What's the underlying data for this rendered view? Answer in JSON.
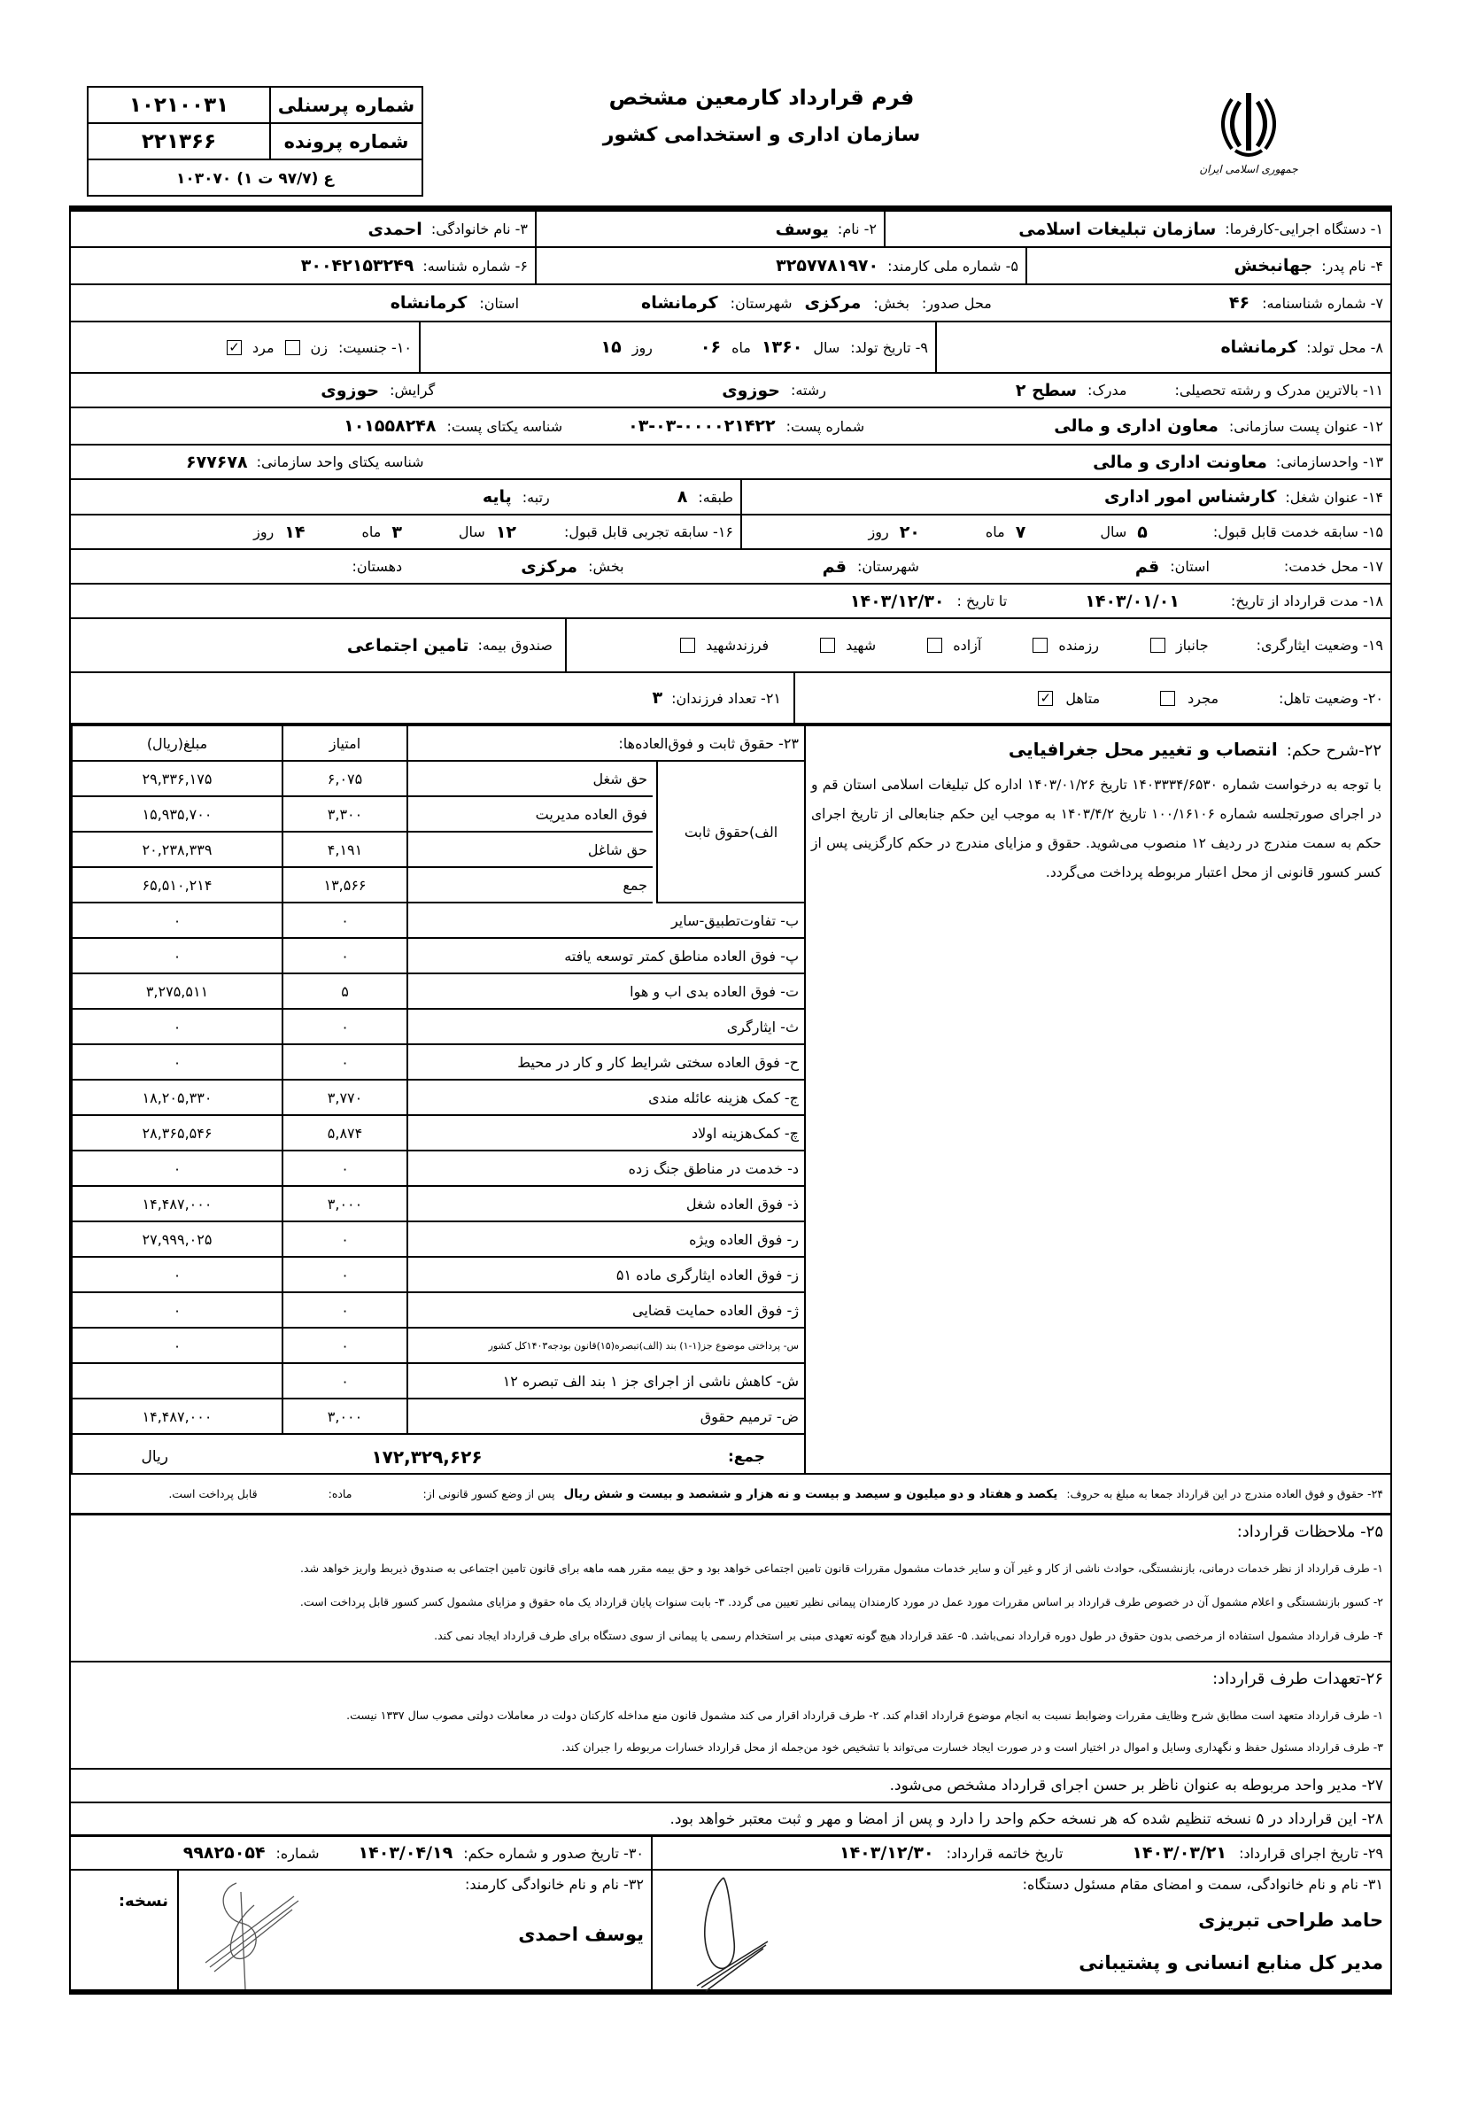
{
  "header": {
    "personnel_no_label": "شماره پرسنلی",
    "personnel_no": "۱۰۲۱۰۰۳۱",
    "file_no_label": "شماره پرونده",
    "file_no": "۲۲۱۳۶۶",
    "form_code": "ع (۹۷/۷ ت ۱) ۱۰۳۰۷۰",
    "title": "فرم قرارداد کارمعین  مشخص",
    "subtitle": "سازمان اداری و استخدامی کشور",
    "logo_text": "جمهوری اسلامی ایران"
  },
  "fields": {
    "employer_label": "۱- دستگاه اجرایی-کارفرما:",
    "employer": "سازمان تبلیغات اسلامی",
    "name_label": "۲- نام:",
    "name": "یوسف",
    "family_label": "۳- نام خانوادگی:",
    "family": "احمدی",
    "father_label": "۴- نام پدر:",
    "father": "جهانبخش",
    "national_id_label": "۵- شماره ملی کارمند:",
    "national_id": "۳۲۵۷۷۸۱۹۷۰",
    "identifier_label": "۶- شماره شناسه:",
    "identifier": "۳۰۰۴۲۱۵۳۲۴۹",
    "birth_cert_label": "۷- شماره شناسنامه:",
    "birth_cert": "۴۶",
    "issue_place_label": "محل صدور:",
    "issue_district_label": "بخش:",
    "issue_district": "مرکزی",
    "issue_city_label": "شهرستان:",
    "issue_city": "کرمانشاه",
    "issue_province_label": "استان:",
    "issue_province": "کرمانشاه",
    "birth_place_label": "۸- محل تولد:",
    "birth_place": "کرمانشاه",
    "birth_date_label": "۹- تاریخ تولد:",
    "year_label": "سال",
    "birth_year": "۱۳۶۰",
    "month_label": "ماه",
    "birth_month": "۰۶",
    "day_label": "روز",
    "birth_day": "۱۵",
    "gender_label": "۱۰- جنسیت:",
    "female_label": "زن",
    "male_label": "مرد",
    "female_checked": false,
    "male_checked": true,
    "education_label": "۱۱- بالاترین مدرک و رشته تحصیلی:",
    "degree_label": "مدرک:",
    "degree": "سطح ۲",
    "major_label": "رشته:",
    "major": "حوزوی",
    "orientation_label": "گرایش:",
    "orientation": "حوزوی",
    "post_title_label": "۱۲- عنوان پست سازمانی:",
    "post_title": "معاون اداری و مالی",
    "post_no_label": "شماره پست:",
    "post_no": "۰۳-۰۳-۰۰۰۰۲۱۴۲۲",
    "post_uid_label": "شناسه یکتای پست:",
    "post_uid": "۱۰۱۵۵۸۲۴۸",
    "unit_label": "۱۳- واحدسازمانی:",
    "unit": "معاونت اداری و مالی",
    "unit_uid_label": "شناسه یکتای واحد سازمانی:",
    "unit_uid": "۶۷۷۶۷۸",
    "job_title_label": "۱۴- عنوان شغل:",
    "job_title": "کارشناس امور اداری",
    "class_label": "طبقه:",
    "class": "۸",
    "rank_label": "رتبه:",
    "rank": "پایه",
    "service_label": "۱۵- سابقه خدمت قابل قبول:",
    "service_years": "۵",
    "service_months": "۷",
    "service_days": "۲۰",
    "experience_label": "۱۶- سابقه تجربی قابل قبول:",
    "exp_years": "۱۲",
    "exp_months": "۳",
    "exp_days": "۱۴",
    "service_place_label": "۱۷- محل خدمت:",
    "sp_province_label": "استان:",
    "sp_province": "قم",
    "sp_city_label": "شهرستان:",
    "sp_city": "قم",
    "sp_district_label": "بخش:",
    "sp_district": "مرکزی",
    "sp_village_label": "دهستان:",
    "duration_label": "۱۸- مدت قرارداد از تاریخ:",
    "from_date": "۱۴۰۳/۰۱/۰۱",
    "to_label": "تا تاریخ :",
    "to_date": "۱۴۰۳/۱۲/۳۰",
    "sacrifice_label": "۱۹- وضعیت ایثارگری:",
    "sacrifice_options": [
      {
        "label": "جانباز",
        "checked": false
      },
      {
        "label": "رزمنده",
        "checked": false
      },
      {
        "label": "آزاده",
        "checked": false
      },
      {
        "label": "شهید",
        "checked": false
      },
      {
        "label": "فرزندشهید",
        "checked": false
      }
    ],
    "insurance_label": "صندوق بیمه:",
    "insurance": "تامین اجتماعی",
    "marital_label": "۲۰- وضعیت تاهل:",
    "single_label": "مجرد",
    "married_label": "متاهل",
    "single_checked": false,
    "married_checked": true,
    "children_label": "۲۱- تعداد فرزندان:",
    "children": "۳"
  },
  "salary": {
    "title": "۲۳-   حقوق ثابت و فوق‌العاده‌ها:",
    "points_header": "امتیاز",
    "amount_header": "مبلغ(ریال)",
    "fixed_group_label": "الف)حقوق ثابت",
    "fixed_rows": [
      {
        "label": "حق شغل",
        "points": "۶,۰۷۵",
        "amount": "۲۹,۳۳۶,۱۷۵"
      },
      {
        "label": "فوق العاده مدیریت",
        "points": "۳,۳۰۰",
        "amount": "۱۵,۹۳۵,۷۰۰"
      },
      {
        "label": "حق شاغل",
        "points": "۴,۱۹۱",
        "amount": "۲۰,۲۳۸,۳۳۹"
      },
      {
        "label": "جمع",
        "points": "۱۳,۵۶۶",
        "amount": "۶۵,۵۱۰,۲۱۴"
      }
    ],
    "rows": [
      {
        "label": "ب- تفاوت‌تطبیق-سایر",
        "points": "۰",
        "amount": "۰"
      },
      {
        "label": "پ- فوق العاده مناطق کمتر توسعه یافته",
        "points": "۰",
        "amount": "۰"
      },
      {
        "label": "ت- فوق العاده بدی اب و هوا",
        "points": "۵",
        "amount": "۳,۲۷۵,۵۱۱"
      },
      {
        "label": "ث- ایثارگری",
        "points": "۰",
        "amount": "۰"
      },
      {
        "label": "ح- فوق العاده سختی شرایط کار و کار در محیط",
        "points": "۰",
        "amount": "۰"
      },
      {
        "label": "ج- کمک هزینه عائله مندی",
        "points": "۳,۷۷۰",
        "amount": "۱۸,۲۰۵,۳۳۰"
      },
      {
        "label": "چ- کمک‌هزینه اولاد",
        "points": "۵,۸۷۴",
        "amount": "۲۸,۳۶۵,۵۴۶"
      },
      {
        "label": "د- خدمت در مناطق جنگ زده",
        "points": "۰",
        "amount": "۰"
      },
      {
        "label": "ذ- فوق العاده شغل",
        "points": "۳,۰۰۰",
        "amount": "۱۴,۴۸۷,۰۰۰"
      },
      {
        "label": "ر- فوق العاده ویژه",
        "points": "۰",
        "amount": "۲۷,۹۹۹,۰۲۵"
      },
      {
        "label": "ز- فوق العاده ایثارگری ماده ۵۱",
        "points": "۰",
        "amount": "۰"
      },
      {
        "label": "ژ- فوق العاده حمایت قضایی",
        "points": "۰",
        "amount": "۰"
      },
      {
        "label": "س- پرداختی موضوع جز(۱-۱) بند (الف)تبصره(۱۵)قانون بودجه۱۴۰۳کل کشور",
        "points": "۰",
        "amount": "۰"
      },
      {
        "label": "ش- کاهش ناشی از اجرای جز ۱ بند الف تبصره ۱۲",
        "points": "۰",
        "amount": ""
      },
      {
        "label": "ض- ترمیم حقوق",
        "points": "۳,۰۰۰",
        "amount": "۱۴,۴۸۷,۰۰۰"
      }
    ],
    "total_label": "جمع:",
    "total": "۱۷۲,۳۲۹,۶۲۶",
    "currency": "ریال"
  },
  "ruling": {
    "label": "۲۲-شرح حکم:",
    "title": "انتصاب و تغییر محل جغرافیایی",
    "text": "با توجه به درخواست شماره ۱۴۰۳۳۳۴/۶۵۳۰ تاریخ ۱۴۰۳/۰۱/۲۶ اداره کل تبلیغات اسلامی استان قم و در اجرای صورتجلسه شماره ۱۰۰/۱۶۱۰۶ تاریخ ۱۴۰۳/۴/۲ به موجب این حکم جنابعالی از تاریخ اجرای حکم به سمت مندرج در ردیف ۱۲ منصوب می‌شوید. حقوق و مزایای مندرج در حکم کارگزینی پس از کسر کسور قانونی از محل اعتبار مربوطه پرداخت می‌گردد."
  },
  "amount_words": {
    "label": "۲۴- حقوق و فوق العاده مندرج در این قرارداد جمعا به مبلغ به حروف:",
    "value": "یکصد و هفتاد و دو میلیون و سیصد و بیست و نه هزار و ششصد و بیست و شش ریال",
    "after_label": "پس از وضع کسور قانونی از:",
    "article_label": "ماده:",
    "payable": "قابل پرداخت است."
  },
  "remarks": {
    "title": "۲۵- ملاحظات قرارداد:",
    "lines": [
      "۱- طرف قرارداد از نظر خدمات درمانی، بازنشستگی، حوادث ناشی از کار و غیر آن و سایر خدمات مشمول مقررات قانون تامین اجتماعی خواهد بود و حق بیمه مقرر همه ماهه برای قانون تامین اجتماعی به صندوق ذیربط واریز خواهد شد.",
      "۲- کسور بازنشستگی و اعلام مشمول آن در خصوص طرف قرارداد بر اساس مقررات مورد عمل در مورد کارمندان پیمانی نظیر تعیین می گردد.      ۳- بابت سنوات پایان قرارداد یک ماه حقوق و مزایای مشمول کسر کسور قابل پرداخت است.",
      "۴- طرف قرارداد مشمول استفاده از مرخصی بدون حقوق در طول دوره قرارداد نمی‌باشد.     ۵- عقد قرارداد هیچ گونه تعهدی مبنی بر استخدام رسمی یا پیمانی از سوی دستگاه برای طرف قرارداد ایجاد نمی کند."
    ]
  },
  "obligations": {
    "title": "۲۶-تعهدات طرف قرارداد:",
    "lines": [
      "۱- طرف قرارداد متعهد است مطابق شرح وظایف مقررات وضوابط نسبت به انجام موضوع قرارداد اقدام کند.      ۲- طرف قرارداد اقرار می کند مشمول قانون منع مداخله کارکنان دولت در معاملات دولتی مصوب سال ۱۳۳۷ نیست.",
      "۳- طرف قرارداد مسئول حفظ و نگهداری وسایل و اموال در اختیار است و در صورت ایجاد خسارت می‌تواند با تشخیص خود من‌جمله از محل قرارداد خسارات مربوطه را جبران کند."
    ]
  },
  "clause27": "۲۷- مدیر واحد مربوطه به عنوان ناظر بر حسن اجرای قرارداد مشخص می‌شود.",
  "clause28": "۲۸- این قرارداد در ۵ نسخه تنظیم شده که هر نسخه حکم واحد را دارد و پس از امضا و مهر و ثبت معتبر خواهد بود.",
  "footer": {
    "exec_date_label": "۲۹- تاریخ اجرای قرارداد:",
    "exec_date": "۱۴۰۳/۰۳/۲۱",
    "end_date_label": "تاریخ خاتمه قرارداد:",
    "end_date": "۱۴۰۳/۱۲/۳۰",
    "issue_label": "۳۰- تاریخ صدور و شماره حکم:",
    "issue_date": "۱۴۰۳/۰۴/۱۹",
    "number_label": "شماره:",
    "number": "۹۹۸۲۵۰۵۴",
    "official_label": "۳۱- نام و نام خانوادگی، سمت و امضای مقام مسئول دستگاه:",
    "official_name": "حامد طراحی تبریزی",
    "official_title": "مدیر کل منابع انسانی و پشتیبانی",
    "employee_label": "۳۲- نام و نام خانوادگی کارمند:",
    "employee_name": "یوسف احمدی",
    "copy_label": "نسخه:"
  }
}
